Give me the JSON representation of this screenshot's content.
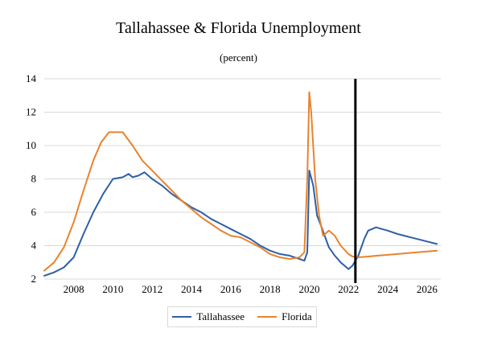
{
  "chart_data": {
    "type": "line",
    "title": "Tallahassee & Florida Unemployment",
    "subtitle": "(percent)",
    "xlabel": "",
    "ylabel": "",
    "xlim": [
      2006.5,
      2026.7
    ],
    "ylim": [
      2,
      14
    ],
    "x_ticks": [
      2008,
      2010,
      2012,
      2014,
      2016,
      2018,
      2020,
      2022,
      2024,
      2026
    ],
    "y_ticks": [
      2,
      4,
      6,
      8,
      10,
      12,
      14
    ],
    "grid": "horizontal",
    "legend": "bottom",
    "vertical_line_x": 2022.35,
    "series": [
      {
        "name": "Tallahassee",
        "color": "#2e5fa6",
        "x": [
          2006.5,
          2007.0,
          2007.5,
          2008.0,
          2008.5,
          2009.0,
          2009.5,
          2010.0,
          2010.5,
          2010.8,
          2011.0,
          2011.3,
          2011.6,
          2012.0,
          2012.5,
          2013.0,
          2013.5,
          2014.0,
          2014.5,
          2015.0,
          2015.5,
          2016.0,
          2016.5,
          2017.0,
          2017.5,
          2018.0,
          2018.5,
          2019.0,
          2019.5,
          2019.75,
          2019.9,
          2020.0,
          2020.2,
          2020.4,
          2020.6,
          2021.0,
          2021.3,
          2021.6,
          2022.0,
          2022.2,
          2022.5,
          2022.8,
          2023.0,
          2023.4,
          2023.7,
          2024.0,
          2024.5,
          2025.0,
          2025.5,
          2026.0,
          2026.5
        ],
        "values": [
          2.2,
          2.4,
          2.7,
          3.3,
          4.7,
          6.0,
          7.1,
          8.0,
          8.1,
          8.3,
          8.1,
          8.2,
          8.4,
          8.0,
          7.6,
          7.1,
          6.7,
          6.3,
          6.0,
          5.6,
          5.3,
          5.0,
          4.7,
          4.4,
          4.0,
          3.7,
          3.5,
          3.4,
          3.2,
          3.1,
          3.6,
          8.5,
          7.6,
          5.8,
          5.2,
          3.9,
          3.4,
          3.0,
          2.6,
          2.8,
          3.4,
          4.4,
          4.9,
          5.1,
          5.0,
          4.9,
          4.7,
          4.55,
          4.4,
          4.25,
          4.1
        ]
      },
      {
        "name": "Florida",
        "color": "#e8832e",
        "x": [
          2006.5,
          2007.0,
          2007.5,
          2008.0,
          2008.5,
          2009.0,
          2009.4,
          2009.8,
          2010.2,
          2010.5,
          2011.0,
          2011.5,
          2012.0,
          2012.5,
          2013.0,
          2013.5,
          2014.0,
          2014.5,
          2015.0,
          2015.5,
          2016.0,
          2016.5,
          2017.0,
          2017.5,
          2018.0,
          2018.5,
          2019.0,
          2019.5,
          2019.75,
          2019.9,
          2020.0,
          2020.1,
          2020.3,
          2020.5,
          2020.7,
          2021.0,
          2021.3,
          2021.6,
          2022.0,
          2022.2,
          2022.5,
          2023.0,
          2023.5,
          2024.0,
          2024.5,
          2025.0,
          2025.5,
          2026.0,
          2026.5
        ],
        "values": [
          2.5,
          3.0,
          3.9,
          5.4,
          7.3,
          9.1,
          10.2,
          10.8,
          10.8,
          10.8,
          10.0,
          9.1,
          8.5,
          7.9,
          7.3,
          6.7,
          6.2,
          5.7,
          5.3,
          4.9,
          4.6,
          4.5,
          4.2,
          3.9,
          3.5,
          3.3,
          3.2,
          3.3,
          3.6,
          8.0,
          13.2,
          12.0,
          8.0,
          5.8,
          4.6,
          4.9,
          4.6,
          4.0,
          3.5,
          3.35,
          3.3,
          3.35,
          3.4,
          3.45,
          3.5,
          3.55,
          3.6,
          3.65,
          3.7
        ]
      }
    ]
  }
}
